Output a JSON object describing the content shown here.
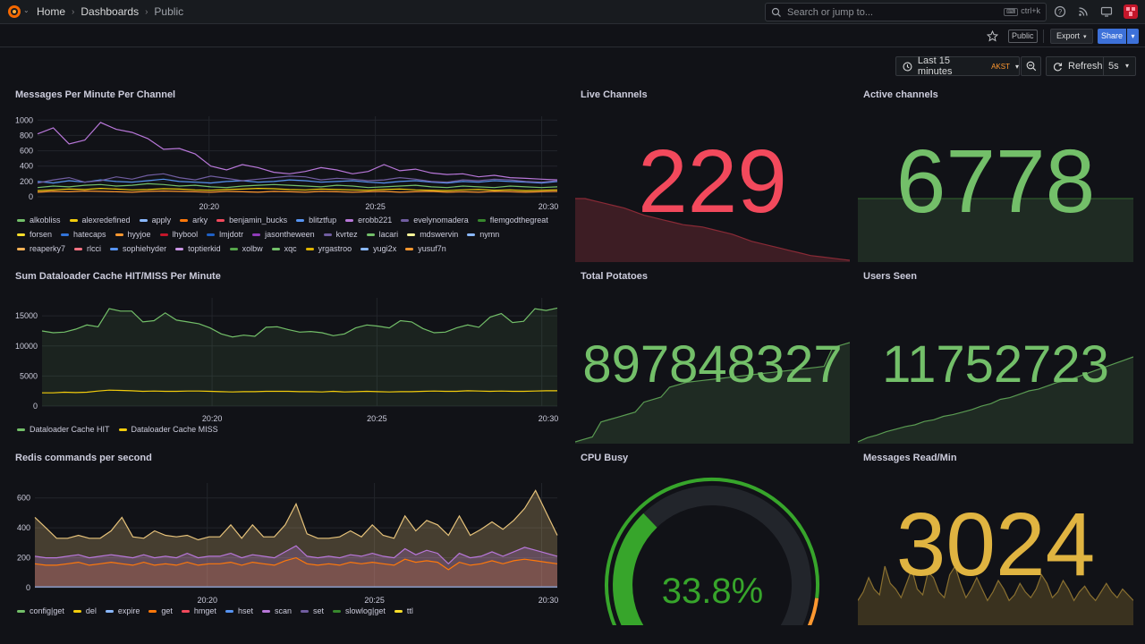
{
  "nav": {
    "breadcrumb": [
      "Home",
      "Dashboards",
      "Public"
    ],
    "search_placeholder": "Search or jump to...",
    "search_shortcut": "ctrl+k"
  },
  "toolbar": {
    "public_badge": "Public",
    "export_label": "Export",
    "share_label": "Share",
    "time_range": "Last 15 minutes",
    "timezone": "AKST",
    "refresh_label": "Refresh",
    "refresh_interval": "5s"
  },
  "colors": {
    "accent": "#3d71d9",
    "red": "#f2495c",
    "green": "#73bf69",
    "yellow": "#f2cc0c",
    "orange": "#ff9830",
    "gold": "#e0b441"
  },
  "panels": {
    "messages": {
      "title": "Messages Per Minute Per Channel",
      "legend": [
        {
          "name": "alkobliss",
          "color": "#73bf69"
        },
        {
          "name": "alexredefined",
          "color": "#f2cc0c"
        },
        {
          "name": "apply",
          "color": "#8ab8ff"
        },
        {
          "name": "arky",
          "color": "#ff780a"
        },
        {
          "name": "benjamin_bucks",
          "color": "#f2495c"
        },
        {
          "name": "blitztfup",
          "color": "#5794f2"
        },
        {
          "name": "erobb221",
          "color": "#b877d9"
        },
        {
          "name": "evelynomadera",
          "color": "#705da0"
        },
        {
          "name": "flemgodthegreat",
          "color": "#37872d"
        },
        {
          "name": "forsen",
          "color": "#fade2a"
        },
        {
          "name": "hatecaps",
          "color": "#3274d9"
        },
        {
          "name": "hyyjoe",
          "color": "#ff9830"
        },
        {
          "name": "lhybool",
          "color": "#c4162a"
        },
        {
          "name": "lmjdotr",
          "color": "#1f60c4"
        },
        {
          "name": "jasontheween",
          "color": "#8f3bb8"
        },
        {
          "name": "kvrtez",
          "color": "#705da0"
        },
        {
          "name": "lacari",
          "color": "#73bf69"
        },
        {
          "name": "mdswervin",
          "color": "#fff899"
        },
        {
          "name": "nymn",
          "color": "#8ab8ff"
        },
        {
          "name": "reaperky7",
          "color": "#ffb357"
        },
        {
          "name": "rlcci",
          "color": "#ff7383"
        },
        {
          "name": "sophiehyder",
          "color": "#5794f2"
        },
        {
          "name": "toptierkid",
          "color": "#ca95e5"
        },
        {
          "name": "xolbw",
          "color": "#56a64b"
        },
        {
          "name": "xqc",
          "color": "#73bf69"
        },
        {
          "name": "yrgastroo",
          "color": "#e0b400"
        },
        {
          "name": "yugi2x",
          "color": "#8ab8ff"
        },
        {
          "name": "yusuf7n",
          "color": "#ff9830"
        }
      ]
    },
    "live": {
      "title": "Live Channels",
      "value": "229"
    },
    "active": {
      "title": "Active channels",
      "value": "6778"
    },
    "cache": {
      "title": "Sum Dataloader Cache HIT/MISS Per Minute",
      "legend": [
        {
          "name": "Dataloader Cache HIT",
          "color": "#73bf69"
        },
        {
          "name": "Dataloader Cache MISS",
          "color": "#f2cc0c"
        }
      ]
    },
    "potatoes": {
      "title": "Total Potatoes",
      "value": "897848327"
    },
    "users": {
      "title": "Users Seen",
      "value": "11752723"
    },
    "redis": {
      "title": "Redis commands per second",
      "legend": [
        {
          "name": "config|get",
          "color": "#73bf69"
        },
        {
          "name": "del",
          "color": "#f2cc0c"
        },
        {
          "name": "expire",
          "color": "#8ab8ff"
        },
        {
          "name": "get",
          "color": "#ff780a"
        },
        {
          "name": "hmget",
          "color": "#f2495c"
        },
        {
          "name": "hset",
          "color": "#5794f2"
        },
        {
          "name": "scan",
          "color": "#b877d9"
        },
        {
          "name": "set",
          "color": "#705da0"
        },
        {
          "name": "slowlog|get",
          "color": "#37872d"
        },
        {
          "name": "ttl",
          "color": "#fade2a"
        }
      ]
    },
    "cpu": {
      "title": "CPU Busy",
      "value": "33.8%",
      "fraction": 0.338
    },
    "readmin": {
      "title": "Messages Read/Min",
      "value": "3024"
    }
  },
  "chart_data": [
    {
      "type": "line",
      "title": "Messages Per Minute Per Channel",
      "x_ticks": [
        "20:20",
        "20:25",
        "20:30"
      ],
      "y_ticks": [
        "0",
        "200",
        "400",
        "600",
        "800",
        "1000"
      ],
      "ylim": [
        0,
        1050
      ],
      "series": [
        {
          "name": "erobb221",
          "values": [
            820,
            900,
            690,
            740,
            970,
            880,
            840,
            760,
            620,
            630,
            560,
            400,
            350,
            420,
            380,
            320,
            300,
            330,
            380,
            350,
            300,
            330,
            420,
            340,
            360,
            310,
            290,
            300,
            260,
            280,
            250,
            240,
            230,
            220
          ]
        },
        {
          "name": "kvrtez",
          "values": [
            180,
            220,
            250,
            190,
            210,
            260,
            230,
            280,
            300,
            250,
            220,
            270,
            240,
            210,
            230,
            250,
            270,
            260,
            220,
            240,
            230,
            210,
            220,
            250,
            230,
            200,
            190,
            220,
            210,
            230,
            220,
            200,
            190,
            210
          ]
        },
        {
          "name": "xqc",
          "values": [
            120,
            140,
            130,
            150,
            160,
            140,
            150,
            170,
            160,
            140,
            150,
            130,
            120,
            140,
            150,
            160,
            150,
            140,
            130,
            150,
            140,
            120,
            130,
            140,
            150,
            130,
            120,
            140,
            130,
            120,
            140,
            130,
            120,
            130
          ]
        },
        {
          "name": "forsen",
          "values": [
            80,
            90,
            100,
            95,
            110,
            100,
            90,
            95,
            105,
            100,
            90,
            85,
            95,
            100,
            110,
            105,
            95,
            90,
            100,
            95,
            90,
            85,
            95,
            100,
            90,
            85,
            80,
            90,
            95,
            85,
            90,
            80,
            85,
            90
          ]
        }
      ]
    },
    {
      "type": "area",
      "title": "Live Channels",
      "values": [
        260,
        260,
        250,
        240,
        230,
        220,
        205,
        190,
        180,
        170,
        160,
        150,
        145,
        140,
        130,
        120,
        110,
        95,
        80,
        70,
        60,
        50,
        40,
        30,
        20,
        15,
        10,
        5,
        0
      ]
    },
    {
      "type": "area",
      "title": "Active channels",
      "values": [
        30,
        30,
        30,
        30,
        30,
        30,
        30,
        30,
        30,
        30,
        30,
        30,
        30
      ]
    },
    {
      "type": "line",
      "title": "Sum Dataloader Cache HIT/MISS Per Minute",
      "x_ticks": [
        "20:20",
        "20:25",
        "20:30"
      ],
      "y_ticks": [
        "0",
        "5000",
        "10000",
        "15000"
      ],
      "ylim": [
        0,
        18000
      ],
      "series": [
        {
          "name": "Dataloader Cache HIT",
          "values": [
            12500,
            12200,
            12300,
            12800,
            13500,
            13200,
            16200,
            15800,
            15800,
            14000,
            14200,
            15500,
            14300,
            14000,
            13700,
            13000,
            12000,
            11500,
            11800,
            11600,
            13100,
            13200,
            12700,
            12300,
            12400,
            12200,
            11700,
            12000,
            13000,
            13500,
            13300,
            13000,
            14200,
            14000,
            12900,
            12200,
            12300,
            13000,
            13500,
            13100,
            14800,
            15400,
            13900,
            14100,
            16200,
            15900,
            16300
          ]
        },
        {
          "name": "Dataloader Cache MISS",
          "values": [
            2200,
            2200,
            2300,
            2250,
            2300,
            2500,
            2650,
            2600,
            2550,
            2450,
            2500,
            2450,
            2450,
            2500,
            2500,
            2450,
            2400,
            2350,
            2400,
            2400,
            2450,
            2450,
            2450,
            2400,
            2400,
            2350,
            2450,
            2350,
            2400,
            2450,
            2400,
            2350,
            2400,
            2400,
            2450,
            2500,
            2450,
            2450,
            2550,
            2500,
            2450,
            2500,
            2450,
            2450,
            2500,
            2550,
            2550
          ]
        }
      ]
    },
    {
      "type": "area",
      "title": "Total Potatoes",
      "values": [
        0,
        5,
        10,
        40,
        45,
        50,
        55,
        60,
        80,
        85,
        90,
        110,
        115,
        120,
        122,
        124,
        126,
        128,
        130,
        132,
        134,
        136,
        138,
        140,
        142,
        144,
        146,
        148,
        150,
        152,
        190,
        195,
        200
      ]
    },
    {
      "type": "area",
      "title": "Users Seen",
      "values": [
        0,
        5,
        8,
        12,
        15,
        18,
        20,
        24,
        26,
        30,
        32,
        35,
        38,
        42,
        45,
        50,
        52,
        56,
        60,
        62,
        66,
        70,
        72,
        76,
        80,
        84,
        88,
        92,
        96,
        100
      ]
    },
    {
      "type": "area",
      "title": "Redis commands per second",
      "x_ticks": [
        "20:20",
        "20:25",
        "20:30"
      ],
      "y_ticks": [
        "0",
        "200",
        "400",
        "600"
      ],
      "ylim": [
        0,
        700
      ],
      "series": [
        {
          "name": "slowlog|get",
          "values": [
            470,
            400,
            330,
            330,
            350,
            330,
            330,
            380,
            470,
            340,
            330,
            380,
            350,
            340,
            350,
            320,
            340,
            340,
            420,
            330,
            420,
            340,
            340,
            420,
            560,
            360,
            330,
            330,
            340,
            380,
            340,
            420,
            350,
            330,
            480,
            380,
            450,
            420,
            350,
            480,
            350,
            390,
            440,
            390,
            450,
            530,
            650,
            500,
            350
          ]
        },
        {
          "name": "hmget",
          "values": [
            210,
            200,
            200,
            210,
            220,
            200,
            210,
            220,
            210,
            200,
            220,
            200,
            210,
            200,
            230,
            200,
            210,
            210,
            230,
            200,
            220,
            210,
            200,
            240,
            280,
            210,
            200,
            210,
            200,
            220,
            210,
            230,
            210,
            200,
            260,
            220,
            250,
            230,
            160,
            230,
            200,
            210,
            240,
            210,
            240,
            270,
            250,
            230,
            210
          ]
        },
        {
          "name": "get",
          "values": [
            160,
            150,
            150,
            160,
            170,
            150,
            160,
            170,
            160,
            150,
            170,
            150,
            160,
            150,
            170,
            150,
            160,
            160,
            170,
            150,
            170,
            160,
            150,
            180,
            200,
            160,
            150,
            160,
            150,
            170,
            160,
            170,
            160,
            150,
            190,
            170,
            180,
            170,
            120,
            170,
            150,
            160,
            180,
            160,
            180,
            190,
            180,
            170,
            160
          ]
        }
      ]
    },
    {
      "type": "area",
      "title": "Messages Read/Min",
      "values": [
        40,
        55,
        80,
        60,
        50,
        100,
        70,
        60,
        45,
        70,
        95,
        60,
        50,
        90,
        80,
        55,
        45,
        85,
        100,
        70,
        45,
        60,
        80,
        60,
        40,
        55,
        75,
        60,
        40,
        50,
        70,
        55,
        45,
        60,
        85,
        70,
        45,
        55,
        75,
        60,
        40,
        55,
        65,
        50,
        40,
        55,
        70,
        55,
        45,
        60,
        50,
        40
      ]
    }
  ]
}
